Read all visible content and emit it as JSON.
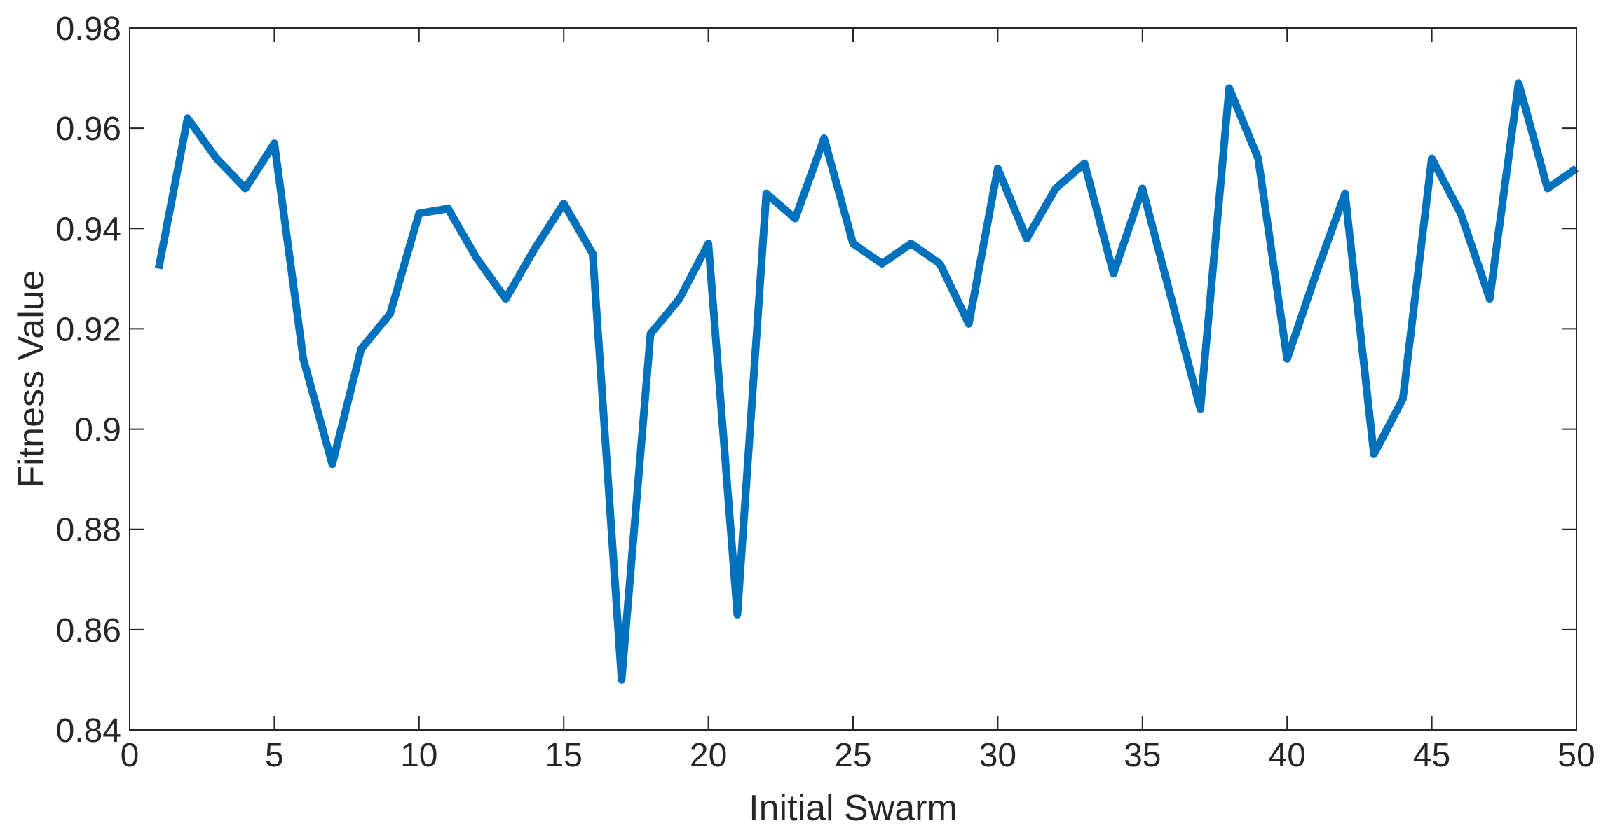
{
  "chart_data": {
    "type": "line",
    "title": "",
    "xlabel": "Initial Swarm",
    "ylabel": "Fitness Value",
    "xlim": [
      0,
      50
    ],
    "ylim": [
      0.84,
      0.98
    ],
    "grid": false,
    "legend": "none",
    "x_ticks": [
      0,
      5,
      10,
      15,
      20,
      25,
      30,
      35,
      40,
      45,
      50
    ],
    "x_tick_labels": [
      "0",
      "5",
      "10",
      "15",
      "20",
      "25",
      "30",
      "35",
      "40",
      "45",
      "50"
    ],
    "y_ticks": [
      0.84,
      0.86,
      0.88,
      0.9,
      0.92,
      0.94,
      0.96,
      0.98
    ],
    "y_tick_labels": [
      "0.84",
      "0.86",
      "0.88",
      "0.9",
      "0.92",
      "0.94",
      "0.96",
      "0.98"
    ],
    "line_color": "#0072BD",
    "x": [
      1,
      2,
      3,
      4,
      5,
      6,
      7,
      8,
      9,
      10,
      11,
      12,
      13,
      14,
      15,
      16,
      17,
      18,
      19,
      20,
      21,
      22,
      23,
      24,
      25,
      26,
      27,
      28,
      29,
      30,
      31,
      32,
      33,
      34,
      35,
      36,
      37,
      38,
      39,
      40,
      41,
      42,
      43,
      44,
      45,
      46,
      47,
      48,
      49,
      50
    ],
    "y": [
      0.932,
      0.962,
      0.954,
      0.948,
      0.957,
      0.914,
      0.893,
      0.916,
      0.923,
      0.943,
      0.944,
      0.934,
      0.926,
      0.936,
      0.945,
      0.935,
      0.85,
      0.919,
      0.926,
      0.937,
      0.863,
      0.947,
      0.942,
      0.958,
      0.937,
      0.933,
      0.937,
      0.933,
      0.921,
      0.952,
      0.938,
      0.948,
      0.953,
      0.931,
      0.948,
      0.926,
      0.904,
      0.968,
      0.954,
      0.914,
      0.931,
      0.947,
      0.895,
      0.906,
      0.954,
      0.943,
      0.926,
      0.969,
      0.948,
      0.952
    ]
  }
}
